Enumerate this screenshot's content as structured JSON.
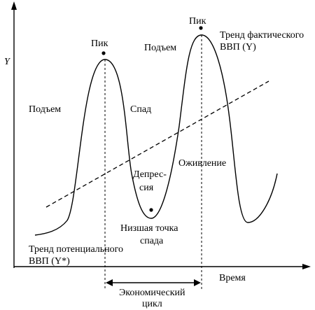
{
  "axes": {
    "y_label": "Y",
    "x_label": "Время"
  },
  "labels": {
    "peak_left": "Пик",
    "peak_right": "Пик",
    "rise_left": "Подъем",
    "rise_right": "Подъем",
    "decline": "Спад",
    "depression_line1": "Депрес-",
    "depression_line2": "сия",
    "trough_line1": "Низшая точка",
    "trough_line2": "спада",
    "recovery": "Оживление",
    "actual_trend_line1": "Тренд фактического",
    "actual_trend_line2_prefix": "ВВП (",
    "actual_trend_symbol": "Y",
    "actual_trend_line2_suffix": ")",
    "potential_trend_line1": "Тренд потенциального",
    "potential_trend_line2_prefix": "ВВП (",
    "potential_trend_symbol": "Y*",
    "potential_trend_line2_suffix": ")",
    "cycle_line1": "Экономический",
    "cycle_line2": "цикл"
  }
}
